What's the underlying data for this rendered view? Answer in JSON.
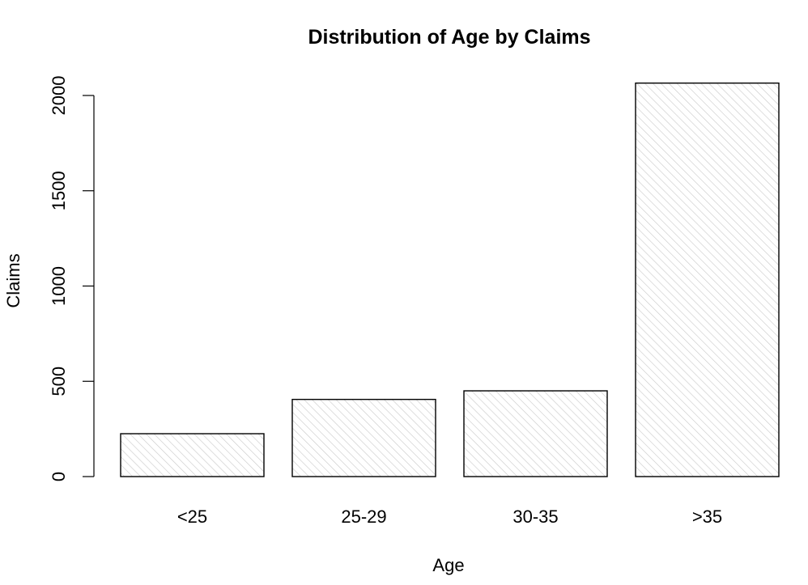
{
  "chart_data": {
    "type": "bar",
    "title": "Distribution of Age by Claims",
    "xlabel": "Age",
    "ylabel": "Claims",
    "categories": [
      "<25",
      "25-29",
      "30-35",
      ">35"
    ],
    "values": [
      225,
      405,
      450,
      2065
    ],
    "ylim": [
      0,
      2000
    ],
    "yticks": [
      0,
      500,
      1000,
      1500,
      2000
    ],
    "ytick_labels": [
      "0",
      "500",
      "1000",
      "1500",
      "2000"
    ],
    "bar_fill": "hatched",
    "bar_hatch_color": "#c8c8c8",
    "bar_border_color": "#000000",
    "grid": false,
    "legend": "none"
  }
}
